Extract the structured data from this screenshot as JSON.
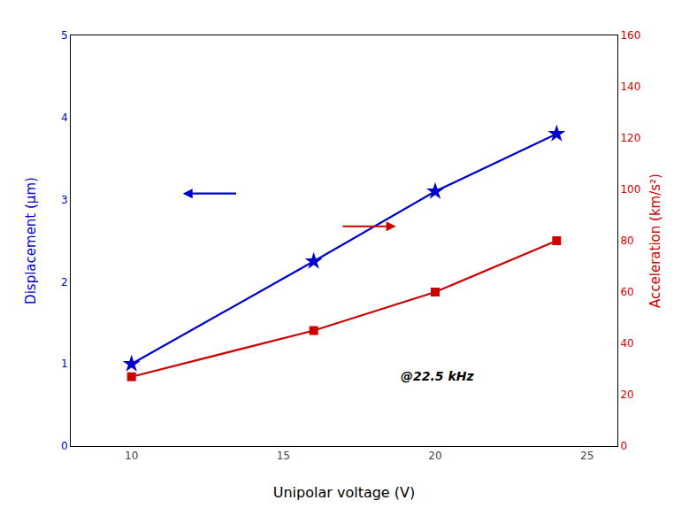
{
  "chart_data": {
    "type": "line",
    "x": [
      10,
      16,
      20,
      24
    ],
    "series": [
      {
        "color": "#0000CC",
        "values": [
          1.0,
          2.25,
          3.1,
          3.8
        ],
        "marker": "star",
        "line_style": "solid"
      },
      {
        "color": "#CC0000",
        "values": [
          27,
          45,
          60,
          80
        ],
        "marker": "square",
        "line_style": "solid",
        "axis": "y2"
      }
    ],
    "xlabel": "Unipolar voltage (V)",
    "ylabel": "Displacement (μm)",
    "y2label": "Acceleration (km/s²)",
    "annotation": "@22.5 kHz",
    "xlim": [
      8,
      26
    ],
    "xticks": [
      10,
      15,
      20,
      25
    ],
    "ylim": [
      0,
      5
    ],
    "yticks": [
      0,
      1,
      2,
      3,
      4,
      5
    ],
    "y2lim": [
      0,
      160
    ],
    "y2ticks": [
      0,
      20,
      40,
      60,
      80,
      100,
      120,
      140,
      160
    ],
    "grid": false
  }
}
